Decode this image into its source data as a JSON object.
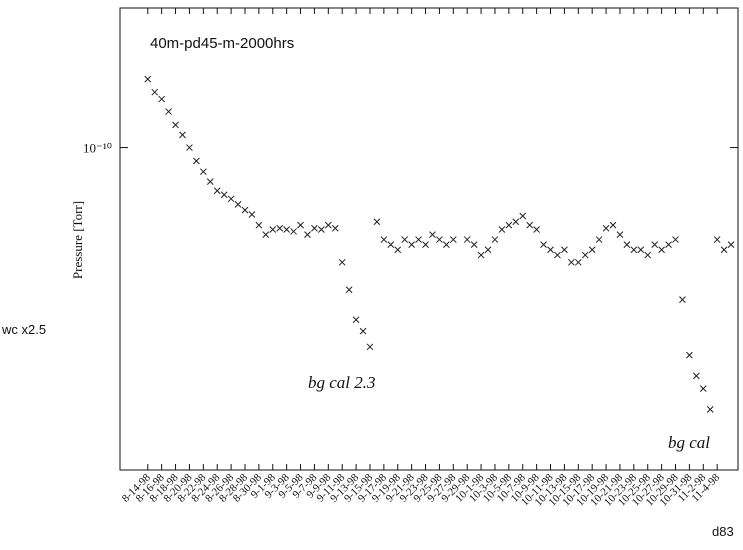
{
  "chart_data": {
    "type": "scatter",
    "title": "40m-pd45-m-2000hrs",
    "ylabel": "Pressure [Torr]",
    "annotations": [
      "wc x2.5",
      "bg cal 2.3",
      "bg cal",
      "d83"
    ],
    "yscale": "log",
    "ylim": [
      2.27e-11,
      1.9e-10
    ],
    "yticks": [
      {
        "value": 1e-10,
        "label": "10⁻¹⁰"
      }
    ],
    "xlim": [
      "1998-08-10",
      "1998-11-07"
    ],
    "xticks": [
      {
        "value": "1998-08-14",
        "label": "8-14-98"
      },
      {
        "value": "1998-08-16",
        "label": "8-16-98"
      },
      {
        "value": "1998-08-18",
        "label": "8-18-98"
      },
      {
        "value": "1998-08-20",
        "label": "8-20-98"
      },
      {
        "value": "1998-08-22",
        "label": "8-22-98"
      },
      {
        "value": "1998-08-24",
        "label": "8-24-98"
      },
      {
        "value": "1998-08-26",
        "label": "8-26-98"
      },
      {
        "value": "1998-08-28",
        "label": "8-28-98"
      },
      {
        "value": "1998-08-30",
        "label": "8-30-98"
      },
      {
        "value": "1998-09-01",
        "label": "9-1-98"
      },
      {
        "value": "1998-09-03",
        "label": "9-3-98"
      },
      {
        "value": "1998-09-05",
        "label": "9-5-98"
      },
      {
        "value": "1998-09-07",
        "label": "9-7-98"
      },
      {
        "value": "1998-09-09",
        "label": "9-9-98"
      },
      {
        "value": "1998-09-11",
        "label": "9-11-98"
      },
      {
        "value": "1998-09-13",
        "label": "9-13-98"
      },
      {
        "value": "1998-09-15",
        "label": "9-15-98"
      },
      {
        "value": "1998-09-17",
        "label": "9-17-98"
      },
      {
        "value": "1998-09-19",
        "label": "9-19-98"
      },
      {
        "value": "1998-09-21",
        "label": "9-21-98"
      },
      {
        "value": "1998-09-23",
        "label": "9-23-98"
      },
      {
        "value": "1998-09-25",
        "label": "9-25-98"
      },
      {
        "value": "1998-09-27",
        "label": "9-27-98"
      },
      {
        "value": "1998-09-29",
        "label": "9-29-98"
      },
      {
        "value": "1998-10-01",
        "label": "10-1-98"
      },
      {
        "value": "1998-10-03",
        "label": "10-3-98"
      },
      {
        "value": "1998-10-05",
        "label": "10-5-98"
      },
      {
        "value": "1998-10-07",
        "label": "10-7-98"
      },
      {
        "value": "1998-10-09",
        "label": "10-9-98"
      },
      {
        "value": "1998-10-11",
        "label": "10-11-98"
      },
      {
        "value": "1998-10-13",
        "label": "10-13-98"
      },
      {
        "value": "1998-10-15",
        "label": "10-15-98"
      },
      {
        "value": "1998-10-17",
        "label": "10-17-98"
      },
      {
        "value": "1998-10-19",
        "label": "10-19-98"
      },
      {
        "value": "1998-10-21",
        "label": "10-21-98"
      },
      {
        "value": "1998-10-23",
        "label": "10-23-98"
      },
      {
        "value": "1998-10-25",
        "label": "10-25-98"
      },
      {
        "value": "1998-10-27",
        "label": "10-27-98"
      },
      {
        "value": "1998-10-29",
        "label": "10-29-98"
      },
      {
        "value": "1998-10-31",
        "label": "10-31-98"
      },
      {
        "value": "1998-11-02",
        "label": "11-2-98"
      },
      {
        "value": "1998-11-04",
        "label": "11-4-98"
      }
    ],
    "color": "#222222",
    "x": [
      "1998-08-14",
      "1998-08-15",
      "1998-08-16",
      "1998-08-17",
      "1998-08-18",
      "1998-08-19",
      "1998-08-20",
      "1998-08-21",
      "1998-08-22",
      "1998-08-23",
      "1998-08-24",
      "1998-08-25",
      "1998-08-26",
      "1998-08-27",
      "1998-08-28",
      "1998-08-29",
      "1998-08-30",
      "1998-08-31",
      "1998-09-01",
      "1998-09-02",
      "1998-09-03",
      "1998-09-04",
      "1998-09-05",
      "1998-09-06",
      "1998-09-07",
      "1998-09-08",
      "1998-09-09",
      "1998-09-10",
      "1998-09-11",
      "1998-09-12",
      "1998-09-13",
      "1998-09-14",
      "1998-09-15",
      "1998-09-16",
      "1998-09-17",
      "1998-09-18",
      "1998-09-19",
      "1998-09-20",
      "1998-09-21",
      "1998-09-22",
      "1998-09-23",
      "1998-09-24",
      "1998-09-25",
      "1998-09-26",
      "1998-09-27",
      "1998-09-29",
      "1998-09-30",
      "1998-10-01",
      "1998-10-02",
      "1998-10-03",
      "1998-10-04",
      "1998-10-05",
      "1998-10-06",
      "1998-10-07",
      "1998-10-08",
      "1998-10-09",
      "1998-10-10",
      "1998-10-11",
      "1998-10-12",
      "1998-10-13",
      "1998-10-14",
      "1998-10-15",
      "1998-10-16",
      "1998-10-17",
      "1998-10-18",
      "1998-10-19",
      "1998-10-20",
      "1998-10-21",
      "1998-10-22",
      "1998-10-23",
      "1998-10-24",
      "1998-10-25",
      "1998-10-26",
      "1998-10-27",
      "1998-10-28",
      "1998-10-29",
      "1998-10-30",
      "1998-10-31",
      "1998-11-01",
      "1998-11-02",
      "1998-11-03",
      "1998-11-04",
      "1998-11-05",
      "1998-11-06"
    ],
    "values": [
      1.37e-10,
      1.29e-10,
      1.25e-10,
      1.18e-10,
      1.11e-10,
      1.06e-10,
      1e-10,
      9.4e-11,
      8.95e-11,
      8.55e-11,
      8.2e-11,
      8.05e-11,
      7.9e-11,
      7.7e-11,
      7.5e-11,
      7.35e-11,
      7e-11,
      6.7e-11,
      6.86e-11,
      6.9e-11,
      6.86e-11,
      6.8e-11,
      7e-11,
      6.7e-11,
      6.9e-11,
      6.86e-11,
      7e-11,
      6.9e-11,
      5.9e-11,
      5.2e-11,
      4.53e-11,
      4.3e-11,
      4e-11,
      7.11e-11,
      6.55e-11,
      6.4e-11,
      6.25e-11,
      6.55e-11,
      6.4e-11,
      6.55e-11,
      6.4e-11,
      6.7e-11,
      6.55e-11,
      6.4e-11,
      6.55e-11,
      6.55e-11,
      6.4e-11,
      6.1e-11,
      6.25e-11,
      6.55e-11,
      6.86e-11,
      7e-11,
      7.11e-11,
      7.3e-11,
      7e-11,
      6.86e-11,
      6.4e-11,
      6.25e-11,
      6.1e-11,
      6.25e-11,
      5.9e-11,
      5.9e-11,
      6.1e-11,
      6.25e-11,
      6.55e-11,
      6.9e-11,
      7e-11,
      6.7e-11,
      6.4e-11,
      6.25e-11,
      6.25e-11,
      6.1e-11,
      6.4e-11,
      6.25e-11,
      6.4e-11,
      6.55e-11,
      4.97e-11,
      3.85e-11,
      3.5e-11,
      3.3e-11,
      3e-11,
      6.55e-11,
      6.25e-11,
      6.4e-11
    ]
  }
}
